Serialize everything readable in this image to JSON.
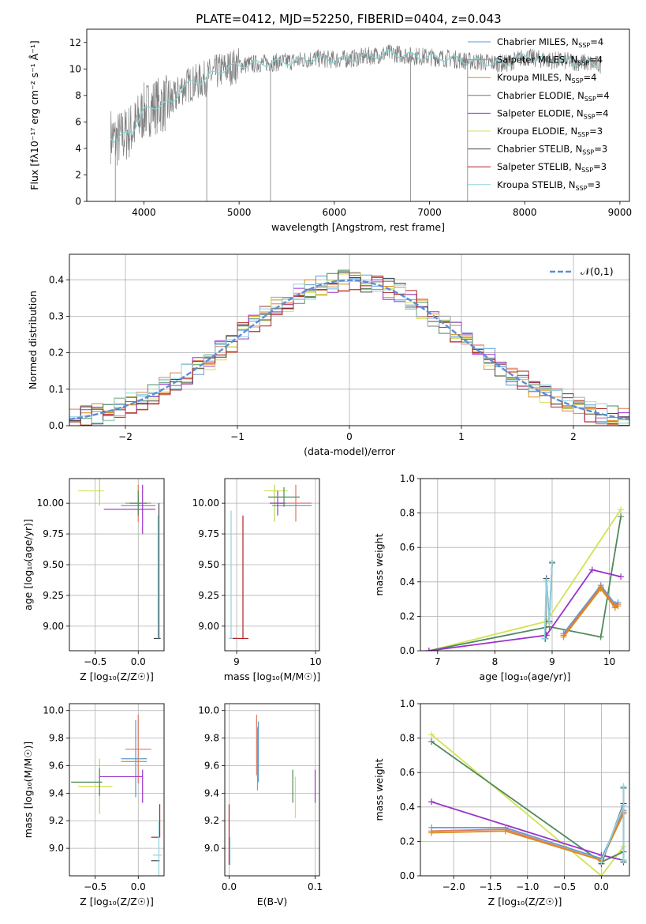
{
  "figure": {
    "title": "PLATE=0412, MJD=52250, FIBERID=0404, z=0.043"
  },
  "chart_data": [
    {
      "id": "spectrum",
      "type": "line",
      "title": "PLATE=0412, MJD=52250, FIBERID=0404, z=0.043",
      "xlabel": "wavelength [Angstrom, rest frame]",
      "ylabel": "Flux [fλ10⁻¹⁷ erg cm⁻² s⁻¹ Å⁻¹]",
      "xlim": [
        3400,
        9100
      ],
      "ylim": [
        0,
        13
      ],
      "xticks": [
        4000,
        5000,
        6000,
        7000,
        8000,
        9000
      ],
      "yticks": [
        0,
        2,
        4,
        6,
        8,
        10,
        12
      ],
      "legend_position": "right",
      "legend": [
        {
          "label": "Chabrier MILES, N",
          "sub": "SSP",
          "suffix": "=4",
          "color": "#5a9bd5"
        },
        {
          "label": "Salpeter MILES, N",
          "sub": "SSP",
          "suffix": "=4",
          "color": "#e07a5f"
        },
        {
          "label": "Kroupa MILES, N",
          "sub": "SSP",
          "suffix": "=4",
          "color": "#d98c1a"
        },
        {
          "label": "Chabrier ELODIE, N",
          "sub": "SSP",
          "suffix": "=4",
          "color": "#4f8a5b"
        },
        {
          "label": "Salpeter ELODIE, N",
          "sub": "SSP",
          "suffix": "=4",
          "color": "#9932cc"
        },
        {
          "label": "Kroupa ELODIE, N",
          "sub": "SSP",
          "suffix": "=3",
          "color": "#d4e157"
        },
        {
          "label": "Chabrier STELIB, N",
          "sub": "SSP",
          "suffix": "=3",
          "color": "#444444"
        },
        {
          "label": "Salpeter STELIB, N",
          "sub": "SSP",
          "suffix": "=3",
          "color": "#b22222"
        },
        {
          "label": "Kroupa STELIB, N",
          "sub": "SSP",
          "suffix": "=3",
          "color": "#8fd3e0"
        }
      ],
      "data_color": "#808080",
      "model_color": "#7fd6d6",
      "continuum": {
        "x": [
          3650,
          3700,
          3800,
          3900,
          4000,
          4100,
          4200,
          4300,
          4400,
          4500,
          4600,
          4800,
          5000,
          5200,
          5400,
          5600,
          5800,
          6000,
          6200,
          6400,
          6600,
          6800,
          7000,
          7200,
          7400,
          7600,
          7800,
          8000,
          8200,
          8400,
          8600,
          8800
        ],
        "y": [
          5.0,
          4.6,
          5.0,
          5.6,
          6.8,
          7.2,
          7.3,
          7.5,
          8.6,
          8.9,
          9.1,
          9.9,
          10.3,
          10.4,
          10.5,
          10.6,
          10.8,
          10.7,
          10.8,
          11.0,
          11.2,
          11.0,
          10.9,
          10.8,
          10.6,
          10.5,
          10.4,
          10.9,
          10.7,
          10.6,
          10.5,
          10.3
        ]
      }
    },
    {
      "id": "residuals",
      "type": "step",
      "xlabel": "(data-model)/error",
      "ylabel": "Normed distribution",
      "xlim": [
        -2.5,
        2.5
      ],
      "ylim": [
        0,
        0.47
      ],
      "xticks": [
        -2,
        -1,
        0,
        1,
        2
      ],
      "yticks": [
        0.0,
        0.1,
        0.2,
        0.3,
        0.4
      ],
      "grid": true,
      "legend_position": "top-right",
      "legend_label": "𝒩(0,1)",
      "gauss_color": "#5b8dd6",
      "bin_width": 0.1
    },
    {
      "id": "age-vs-Z",
      "type": "errorbar",
      "xlabel": "Z [log₁₀(Z/Z☉)]",
      "ylabel": "age  [log₁₀(age/yr)]",
      "xlim": [
        -0.8,
        0.3
      ],
      "ylim": [
        8.8,
        10.2
      ],
      "xticks": [
        -0.5,
        0.0
      ],
      "yticks": [
        9.0,
        9.25,
        9.5,
        9.75,
        10.0
      ],
      "points": [
        {
          "x": -0.55,
          "y": 10.1,
          "xerr": 0.15,
          "yerr": 0.0,
          "color": "#d4e157"
        },
        {
          "x": -0.45,
          "y": 10.1,
          "xerr": 0.0,
          "yerr": 0.12,
          "color": "#b5d65a"
        },
        {
          "x": 0.0,
          "y": 9.98,
          "xerr": 0.2,
          "yerr": 0.0,
          "color": "#5a9bd5"
        },
        {
          "x": 0.0,
          "y": 10.0,
          "xerr": 0.15,
          "yerr": 0.15,
          "color": "#e07a5f"
        },
        {
          "x": -0.1,
          "y": 9.95,
          "xerr": 0.3,
          "yerr": 0.0,
          "color": "#9932cc"
        },
        {
          "x": 0.05,
          "y": 9.95,
          "xerr": 0.0,
          "yerr": 0.2,
          "color": "#9932cc"
        },
        {
          "x": 0.0,
          "y": 10.0,
          "xerr": 0.1,
          "yerr": 0.1,
          "color": "#4f8a5b"
        },
        {
          "x": 0.22,
          "y": 8.9,
          "xerr": 0.04,
          "yerr": 0.0,
          "color": "#444444"
        },
        {
          "x": 0.24,
          "y": 9.45,
          "xerr": 0.0,
          "yerr": 0.55,
          "color": "#444444"
        },
        {
          "x": 0.23,
          "y": 9.4,
          "xerr": 0.0,
          "yerr": 0.5,
          "color": "#8fd3e0"
        }
      ]
    },
    {
      "id": "age-vs-mass",
      "type": "errorbar",
      "xlabel": "mass [log₁₀(M/M☉)]",
      "ylabel": "",
      "xlim": [
        8.85,
        10.05
      ],
      "ylim": [
        8.8,
        10.2
      ],
      "xticks": [
        9,
        10
      ],
      "yticks": [
        9.0,
        9.25,
        9.5,
        9.75,
        10.0
      ],
      "points": [
        {
          "x": 9.5,
          "y": 10.1,
          "xerr": 0.15,
          "yerr": 0.0,
          "color": "#d4e157"
        },
        {
          "x": 9.48,
          "y": 10.0,
          "xerr": 0.0,
          "yerr": 0.15,
          "color": "#b5d65a"
        },
        {
          "x": 9.7,
          "y": 9.98,
          "xerr": 0.25,
          "yerr": 0.0,
          "color": "#5a9bd5"
        },
        {
          "x": 9.75,
          "y": 10.0,
          "xerr": 0.2,
          "yerr": 0.15,
          "color": "#e07a5f"
        },
        {
          "x": 9.52,
          "y": 10.0,
          "xerr": 0.1,
          "yerr": 0.1,
          "color": "#9932cc"
        },
        {
          "x": 9.6,
          "y": 10.05,
          "xerr": 0.2,
          "yerr": 0.08,
          "color": "#4f8a5b"
        },
        {
          "x": 8.95,
          "y": 8.9,
          "xerr": 0.05,
          "yerr": 0.0,
          "color": "#444444"
        },
        {
          "x": 8.93,
          "y": 9.42,
          "xerr": 0.0,
          "yerr": 0.52,
          "color": "#8fd3e0"
        },
        {
          "x": 9.0,
          "y": 8.9,
          "xerr": 0.1,
          "yerr": 0.0,
          "color": "#8fd3e0"
        },
        {
          "x": 9.08,
          "y": 9.4,
          "xerr": 0.0,
          "yerr": 0.5,
          "color": "#b22222"
        },
        {
          "x": 9.05,
          "y": 8.9,
          "xerr": 0.1,
          "yerr": 0.0,
          "color": "#b22222"
        }
      ]
    },
    {
      "id": "weight-vs-age",
      "type": "line",
      "xlabel": "age  [log₁₀(age/yr)]",
      "ylabel": "mass weight",
      "xlim": [
        6.7,
        10.35
      ],
      "ylim": [
        0,
        1.0
      ],
      "xticks": [
        7,
        8,
        9,
        10
      ],
      "yticks": [
        0.0,
        0.2,
        0.4,
        0.6,
        0.8,
        1.0
      ],
      "series": [
        {
          "color": "#d4e157",
          "x": [
            6.85,
            8.9,
            10.2
          ],
          "y": [
            0.0,
            0.17,
            0.82
          ]
        },
        {
          "color": "#4f8a5b",
          "x": [
            6.85,
            8.95,
            9.85,
            10.2
          ],
          "y": [
            0.0,
            0.14,
            0.08,
            0.78
          ]
        },
        {
          "color": "#9932cc",
          "x": [
            6.85,
            8.9,
            9.7,
            10.2
          ],
          "y": [
            0.0,
            0.09,
            0.47,
            0.43
          ]
        },
        {
          "color": "#5a9bd5",
          "x": [
            9.2,
            9.85,
            10.1,
            10.15
          ],
          "y": [
            0.1,
            0.38,
            0.27,
            0.28
          ]
        },
        {
          "color": "#e07a5f",
          "x": [
            9.2,
            9.85,
            10.1,
            10.15
          ],
          "y": [
            0.09,
            0.37,
            0.26,
            0.27
          ]
        },
        {
          "color": "#d98c1a",
          "x": [
            9.2,
            9.85,
            10.1,
            10.15
          ],
          "y": [
            0.08,
            0.36,
            0.25,
            0.26
          ]
        },
        {
          "color": "#444444",
          "x": [
            8.88,
            8.9,
            8.95,
            9.0
          ],
          "y": [
            0.07,
            0.42,
            0.17,
            0.51
          ]
        },
        {
          "color": "#8fd3e0",
          "x": [
            8.87,
            8.9,
            8.95,
            9.0
          ],
          "y": [
            0.07,
            0.41,
            0.16,
            0.52
          ]
        }
      ]
    },
    {
      "id": "mass-vs-Z",
      "type": "errorbar",
      "xlabel": "Z [log₁₀(Z/Z☉)]",
      "ylabel": "mass [log₁₀(M/M☉)]",
      "xlim": [
        -0.8,
        0.3
      ],
      "ylim": [
        8.8,
        10.05
      ],
      "xticks": [
        -0.5,
        0.0
      ],
      "yticks": [
        9.0,
        9.2,
        9.4,
        9.6,
        9.8,
        10.0
      ],
      "points": [
        {
          "x": -0.5,
          "y": 9.45,
          "xerr": 0.2,
          "yerr": 0.0,
          "color": "#d4e157"
        },
        {
          "x": -0.45,
          "y": 9.45,
          "xerr": 0.0,
          "yerr": 0.2,
          "color": "#b5d65a"
        },
        {
          "x": -0.6,
          "y": 9.48,
          "xerr": 0.18,
          "yerr": 0.0,
          "color": "#4f8a5b"
        },
        {
          "x": -0.45,
          "y": 9.48,
          "xerr": 0.0,
          "yerr": 0.1,
          "color": "#4f8a5b"
        },
        {
          "x": -0.05,
          "y": 9.65,
          "xerr": 0.15,
          "yerr": 0.0,
          "color": "#5a9bd5"
        },
        {
          "x": -0.03,
          "y": 9.65,
          "xerr": 0.0,
          "yerr": 0.28,
          "color": "#5a9bd5"
        },
        {
          "x": 0.0,
          "y": 9.72,
          "xerr": 0.15,
          "yerr": 0.0,
          "color": "#e07a5f"
        },
        {
          "x": 0.0,
          "y": 9.72,
          "xerr": 0.0,
          "yerr": 0.25,
          "color": "#e07a5f"
        },
        {
          "x": -0.05,
          "y": 9.63,
          "xerr": 0.15,
          "yerr": 0.0,
          "color": "#d98c1a"
        },
        {
          "x": -0.2,
          "y": 9.52,
          "xerr": 0.25,
          "yerr": 0.0,
          "color": "#9932cc"
        },
        {
          "x": 0.05,
          "y": 9.45,
          "xerr": 0.0,
          "yerr": 0.12,
          "color": "#9932cc"
        },
        {
          "x": 0.2,
          "y": 9.08,
          "xerr": 0.05,
          "yerr": 0.0,
          "color": "#b22222"
        },
        {
          "x": 0.25,
          "y": 9.2,
          "xerr": 0.0,
          "yerr": 0.12,
          "color": "#b22222"
        },
        {
          "x": 0.22,
          "y": 8.95,
          "xerr": 0.05,
          "yerr": 0.0,
          "color": "#8fd3e0"
        },
        {
          "x": 0.2,
          "y": 8.91,
          "xerr": 0.05,
          "yerr": 0.0,
          "color": "#444444"
        },
        {
          "x": 0.24,
          "y": 9.0,
          "xerr": 0.0,
          "yerr": 0.2,
          "color": "#8fd3e0"
        }
      ]
    },
    {
      "id": "mass-vs-EBV",
      "type": "errorbar",
      "xlabel": "E(B-V)",
      "ylabel": "",
      "xlim": [
        -0.005,
        0.105
      ],
      "ylim": [
        8.8,
        10.05
      ],
      "xticks": [
        0.0,
        0.1
      ],
      "yticks": [
        9.0,
        9.2,
        9.4,
        9.6,
        9.8,
        10.0
      ],
      "points": [
        {
          "x": 0.0,
          "y": 9.1,
          "xerr": 0.0,
          "yerr": 0.22,
          "color": "#b22222"
        },
        {
          "x": 0.001,
          "y": 8.98,
          "xerr": 0.0,
          "yerr": 0.1,
          "color": "#8fd3e0"
        },
        {
          "x": 0.032,
          "y": 9.75,
          "xerr": 0.0,
          "yerr": 0.22,
          "color": "#e07a5f"
        },
        {
          "x": 0.034,
          "y": 9.7,
          "xerr": 0.0,
          "yerr": 0.22,
          "color": "#5a9bd5"
        },
        {
          "x": 0.033,
          "y": 9.65,
          "xerr": 0.0,
          "yerr": 0.23,
          "color": "#d98c1a"
        },
        {
          "x": 0.074,
          "y": 9.45,
          "xerr": 0.0,
          "yerr": 0.12,
          "color": "#4f8a5b"
        },
        {
          "x": 0.077,
          "y": 9.37,
          "xerr": 0.0,
          "yerr": 0.15,
          "color": "#d4e157"
        },
        {
          "x": 0.1,
          "y": 9.45,
          "xerr": 0.0,
          "yerr": 0.12,
          "color": "#9932cc"
        }
      ]
    },
    {
      "id": "weight-vs-Z",
      "type": "line",
      "xlabel": "Z [log₁₀(Z/Z☉)]",
      "ylabel": "mass weight",
      "xlim": [
        -2.45,
        0.38
      ],
      "ylim": [
        0,
        1.0
      ],
      "xticks": [
        -2.0,
        -1.5,
        -1.0,
        -0.5,
        0.0
      ],
      "yticks": [
        0.0,
        0.2,
        0.4,
        0.6,
        0.8,
        1.0
      ],
      "series": [
        {
          "color": "#d4e157",
          "x": [
            -2.3,
            0.0,
            0.3
          ],
          "y": [
            0.82,
            0.0,
            0.17
          ]
        },
        {
          "color": "#4f8a5b",
          "x": [
            -2.3,
            0.0,
            0.3
          ],
          "y": [
            0.78,
            0.08,
            0.14
          ]
        },
        {
          "color": "#9932cc",
          "x": [
            -2.3,
            0.0,
            0.3
          ],
          "y": [
            0.43,
            0.12,
            0.09
          ]
        },
        {
          "color": "#5a9bd5",
          "x": [
            -2.3,
            -1.3,
            0.0,
            0.3
          ],
          "y": [
            0.28,
            0.28,
            0.1,
            0.38
          ]
        },
        {
          "color": "#e07a5f",
          "x": [
            -2.3,
            -1.3,
            0.0,
            0.3
          ],
          "y": [
            0.26,
            0.27,
            0.09,
            0.37
          ]
        },
        {
          "color": "#d98c1a",
          "x": [
            -2.3,
            -1.3,
            0.0,
            0.3
          ],
          "y": [
            0.25,
            0.26,
            0.09,
            0.36
          ]
        },
        {
          "color": "#444444",
          "x": [
            0.0,
            0.3,
            0.3,
            0.3
          ],
          "y": [
            0.07,
            0.42,
            0.51,
            0.08
          ]
        },
        {
          "color": "#8fd3e0",
          "x": [
            0.0,
            0.3,
            0.3,
            0.3
          ],
          "y": [
            0.08,
            0.41,
            0.52,
            0.09
          ]
        }
      ]
    }
  ]
}
